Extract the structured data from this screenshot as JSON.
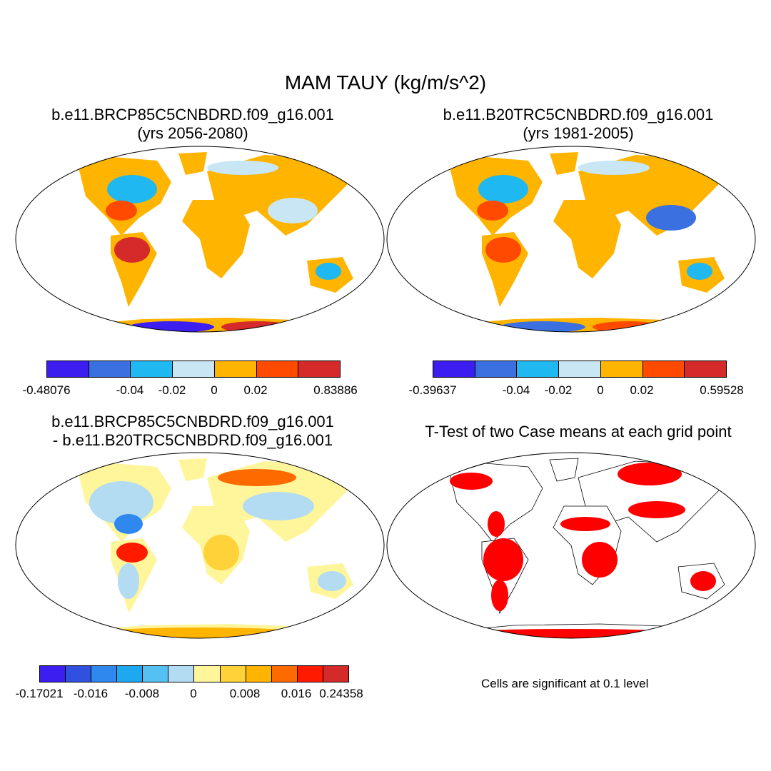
{
  "title": "MAM TAUY (kg/m/s^2)",
  "panels": {
    "top_left": {
      "title_line1": "b.e11.BRCP85C5CNBDRD.f09_g16.001",
      "title_line2": "(yrs 2056-2080)"
    },
    "top_right": {
      "title_line1": "b.e11.B20TRC5CNBDRD.f09_g16.001",
      "title_line2": "(yrs 1981-2005)"
    },
    "bottom_left": {
      "title_line1": "b.e11.BRCP85C5CNBDRD.f09_g16.001",
      "title_line2": "- b.e11.B20TRC5CNBDRD.f09_g16.001"
    },
    "bottom_right": {
      "title_line1": "T-Test of two Case means at each grid point",
      "note": "Cells are significant at 0.1 level"
    }
  },
  "colorbars": {
    "top_left": {
      "colors": [
        "#3c1ef0",
        "#3a70e0",
        "#1fb8f0",
        "#c8e6f4",
        "#ffb400",
        "#ff4a00",
        "#d42a2a"
      ],
      "labels": [
        "-0.48076",
        "-0.04",
        "-0.02",
        "0",
        "0.02",
        "0.83886"
      ]
    },
    "top_right": {
      "colors": [
        "#3c1ef0",
        "#3a70e0",
        "#1fb8f0",
        "#c8e6f4",
        "#ffb400",
        "#ff4a00",
        "#d42a2a"
      ],
      "labels": [
        "-0.39637",
        "-0.04",
        "-0.02",
        "0",
        "0.02",
        "0.59528"
      ]
    },
    "bottom_left": {
      "colors": [
        "#3c1ef0",
        "#3050e0",
        "#2f88ee",
        "#1ea8f0",
        "#55c0f2",
        "#b3dcf2",
        "#fff59a",
        "#ffd23a",
        "#ffb400",
        "#ff6a00",
        "#ff1a00",
        "#d42a2a"
      ],
      "labels": [
        "-0.17021",
        "-0.016",
        "-0.008",
        "0",
        "0.008",
        "0.016",
        "0.24358"
      ]
    }
  }
}
